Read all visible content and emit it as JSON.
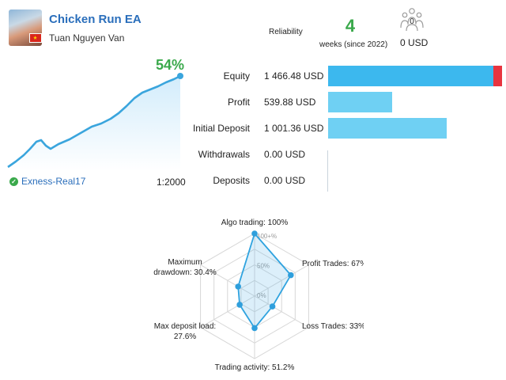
{
  "header": {
    "title": "Chicken Run EA",
    "author": "Tuan Nguyen Van",
    "reliability_label": "Reliability",
    "weeks_value": "4",
    "weeks_text": "weeks (since 2022)",
    "subscribers_count": "0",
    "subscribers_amount": "0 USD"
  },
  "growth": {
    "percent": "54%",
    "account": "Exness-Real17",
    "leverage": "1:2000",
    "line_color": "#3aa5dd"
  },
  "stats": [
    {
      "label": "Equity",
      "value": "1 466.48 USD",
      "fill": 1.0,
      "has_red": true
    },
    {
      "label": "Profit",
      "value": "539.88 USD",
      "fill": 0.368,
      "has_red": false
    },
    {
      "label": "Initial Deposit",
      "value": "1 001.36 USD",
      "fill": 0.683,
      "has_red": false
    },
    {
      "label": "Withdrawals",
      "value": "0.00 USD",
      "fill": 0,
      "has_red": false
    },
    {
      "label": "Deposits",
      "value": "0.00 USD",
      "fill": 0,
      "has_red": false
    }
  ],
  "radar": {
    "axis_labels": [
      "100+%",
      "50%",
      "0%"
    ],
    "metrics": [
      {
        "label": "Algo trading: 100%",
        "value": 1.0
      },
      {
        "label": "Profit Trades: 67%",
        "value": 0.67
      },
      {
        "label": "Loss Trades: 33%",
        "value": 0.33
      },
      {
        "label": "Trading activity: 51.2%",
        "value": 0.512
      },
      {
        "label": "Max deposit load: 27.6%",
        "value": 0.276
      },
      {
        "label": "Maximum drawdown: 30.4%",
        "value": 0.304
      }
    ],
    "label_lines": [
      [
        "Algo trading: 100%"
      ],
      [
        "Profit Trades: 67%"
      ],
      [
        "Loss Trades: 33%"
      ],
      [
        "Trading activity: 51.2%"
      ],
      [
        "Max deposit load:",
        "27.6%"
      ],
      [
        "Maximum",
        "drawdown: 30.4%"
      ]
    ]
  },
  "colors": {
    "accent": "#2a6ebb",
    "green": "#3aa94b",
    "equity_bar": "#3cb8ee",
    "bar_light": "#6fd0f3",
    "red": "#e8343f"
  }
}
